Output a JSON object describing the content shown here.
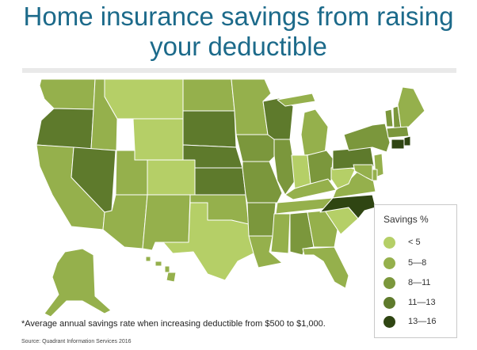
{
  "title_line1": "Home insurance savings from raising",
  "title_line2": "your deductible",
  "legend": {
    "title": "Savings %",
    "items": [
      {
        "label": "< 5",
        "color": "#b5cf67"
      },
      {
        "label": "5—8",
        "color": "#95b04c"
      },
      {
        "label": "8—11",
        "color": "#7b973c"
      },
      {
        "label": "11—13",
        "color": "#5e7a2c"
      },
      {
        "label": "13—16",
        "color": "#2f4512"
      }
    ]
  },
  "footnote": "*Average annual savings rate when increasing deductible from $500 to $1,000.",
  "source": "Source: Quadrant Information Services 2016",
  "map_data": {
    "type": "choropleth",
    "variable": "Savings %",
    "states": [
      {
        "abbr": "WA",
        "bin": 1
      },
      {
        "abbr": "OR",
        "bin": 3
      },
      {
        "abbr": "CA",
        "bin": 1
      },
      {
        "abbr": "ID",
        "bin": 1
      },
      {
        "abbr": "NV",
        "bin": 3
      },
      {
        "abbr": "AZ",
        "bin": 1
      },
      {
        "abbr": "UT",
        "bin": 1
      },
      {
        "abbr": "MT",
        "bin": 0
      },
      {
        "abbr": "WY",
        "bin": 0
      },
      {
        "abbr": "CO",
        "bin": 0
      },
      {
        "abbr": "NM",
        "bin": 1
      },
      {
        "abbr": "ND",
        "bin": 1
      },
      {
        "abbr": "SD",
        "bin": 3
      },
      {
        "abbr": "NE",
        "bin": 3
      },
      {
        "abbr": "KS",
        "bin": 3
      },
      {
        "abbr": "OK",
        "bin": 1
      },
      {
        "abbr": "TX",
        "bin": 0
      },
      {
        "abbr": "MN",
        "bin": 1
      },
      {
        "abbr": "IA",
        "bin": 2
      },
      {
        "abbr": "MO",
        "bin": 2
      },
      {
        "abbr": "AR",
        "bin": 2
      },
      {
        "abbr": "LA",
        "bin": 1
      },
      {
        "abbr": "WI",
        "bin": 3
      },
      {
        "abbr": "IL",
        "bin": 2
      },
      {
        "abbr": "MI",
        "bin": 1
      },
      {
        "abbr": "IN",
        "bin": 0
      },
      {
        "abbr": "OH",
        "bin": 2
      },
      {
        "abbr": "KY",
        "bin": 1
      },
      {
        "abbr": "TN",
        "bin": 1
      },
      {
        "abbr": "MS",
        "bin": 1
      },
      {
        "abbr": "AL",
        "bin": 2
      },
      {
        "abbr": "GA",
        "bin": 1
      },
      {
        "abbr": "FL",
        "bin": 1
      },
      {
        "abbr": "SC",
        "bin": 0
      },
      {
        "abbr": "NC",
        "bin": 4
      },
      {
        "abbr": "VA",
        "bin": 1
      },
      {
        "abbr": "WV",
        "bin": 0
      },
      {
        "abbr": "PA",
        "bin": 3
      },
      {
        "abbr": "NY",
        "bin": 2
      },
      {
        "abbr": "VT",
        "bin": 2
      },
      {
        "abbr": "NH",
        "bin": 2
      },
      {
        "abbr": "ME",
        "bin": 1
      },
      {
        "abbr": "MA",
        "bin": 2
      },
      {
        "abbr": "RI",
        "bin": 4
      },
      {
        "abbr": "CT",
        "bin": 4
      },
      {
        "abbr": "NJ",
        "bin": 1
      },
      {
        "abbr": "DE",
        "bin": 1
      },
      {
        "abbr": "MD",
        "bin": 1
      },
      {
        "abbr": "AK",
        "bin": 1
      },
      {
        "abbr": "HI",
        "bin": 1
      }
    ]
  }
}
